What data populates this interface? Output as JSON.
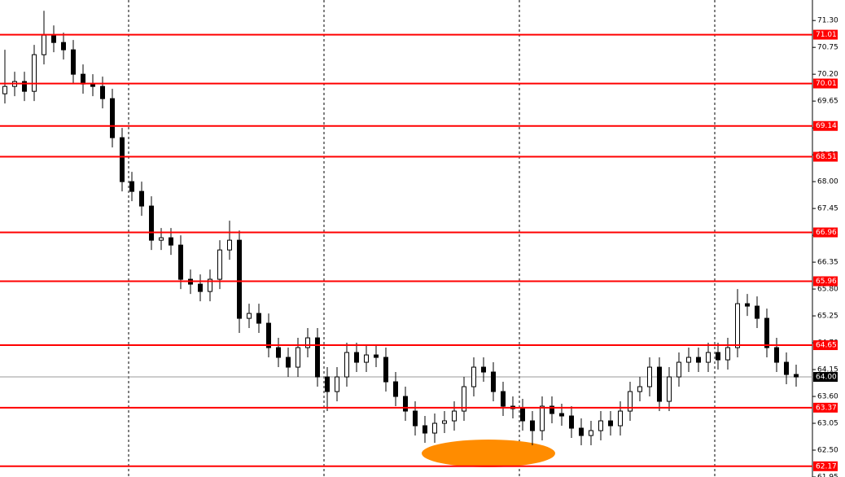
{
  "chart_data": {
    "type": "candlestick",
    "x": null,
    "open": [
      69.8,
      69.95,
      70.05,
      69.85,
      70.6,
      71.0,
      70.85,
      70.7,
      70.2,
      70.0,
      69.95,
      69.7,
      68.9,
      68.0,
      67.8,
      67.5,
      66.8,
      66.85,
      66.7,
      66.0,
      65.9,
      65.75,
      66.0,
      66.6,
      66.8,
      65.2,
      65.3,
      65.1,
      64.6,
      64.4,
      64.2,
      64.6,
      64.8,
      64.0,
      63.7,
      64.0,
      64.5,
      64.3,
      64.45,
      64.4,
      63.9,
      63.6,
      63.3,
      63.0,
      62.85,
      63.05,
      63.1,
      63.3,
      63.8,
      64.2,
      64.1,
      63.7,
      63.4,
      63.35,
      63.1,
      62.9,
      63.4,
      63.25,
      63.2,
      62.95,
      62.8,
      62.9,
      63.1,
      63.0,
      63.3,
      63.7,
      63.8,
      64.2,
      63.5,
      64.0,
      64.3,
      64.4,
      64.3,
      64.5,
      64.35,
      64.6,
      65.5,
      65.45,
      65.2,
      64.6,
      64.3,
      64.05
    ],
    "high": [
      70.7,
      70.25,
      70.25,
      70.8,
      71.5,
      71.2,
      71.05,
      70.9,
      70.4,
      70.2,
      70.15,
      69.9,
      69.1,
      68.2,
      68.0,
      67.7,
      67.05,
      67.05,
      66.9,
      66.2,
      66.1,
      66.2,
      66.8,
      67.2,
      67.0,
      65.5,
      65.5,
      65.3,
      64.8,
      64.6,
      64.8,
      65.0,
      65.0,
      64.2,
      64.2,
      64.7,
      64.7,
      64.65,
      64.65,
      64.6,
      64.1,
      63.8,
      63.5,
      63.2,
      63.25,
      63.3,
      63.5,
      64.0,
      64.4,
      64.4,
      64.3,
      63.9,
      63.6,
      63.55,
      63.3,
      63.6,
      63.6,
      63.45,
      63.4,
      63.15,
      63.1,
      63.3,
      63.3,
      63.5,
      63.9,
      64.0,
      64.4,
      64.4,
      64.2,
      64.5,
      64.6,
      64.6,
      64.7,
      64.7,
      64.8,
      65.8,
      65.7,
      65.65,
      65.4,
      64.8,
      64.5,
      64.25
    ],
    "low": [
      69.6,
      69.75,
      69.65,
      69.65,
      70.4,
      70.65,
      70.5,
      70.0,
      69.8,
      69.75,
      69.5,
      68.7,
      67.8,
      67.6,
      67.3,
      66.6,
      66.6,
      66.5,
      65.8,
      65.7,
      65.55,
      65.55,
      65.8,
      66.4,
      64.9,
      65.0,
      64.9,
      64.4,
      64.2,
      64.0,
      64.0,
      64.4,
      63.8,
      63.3,
      63.5,
      63.8,
      64.1,
      64.1,
      64.2,
      63.7,
      63.4,
      63.1,
      62.8,
      62.65,
      62.65,
      62.85,
      62.9,
      63.1,
      63.6,
      63.9,
      63.5,
      63.2,
      63.15,
      62.9,
      62.6,
      62.7,
      63.05,
      63.0,
      62.75,
      62.6,
      62.6,
      62.7,
      62.8,
      62.8,
      63.1,
      63.5,
      63.6,
      63.3,
      63.3,
      63.8,
      64.1,
      64.1,
      64.1,
      64.15,
      64.15,
      64.4,
      65.25,
      65.0,
      64.4,
      64.1,
      63.85,
      63.8
    ],
    "close": [
      69.95,
      70.05,
      69.85,
      70.6,
      71.0,
      70.85,
      70.7,
      70.2,
      70.0,
      69.95,
      69.7,
      68.9,
      68.0,
      67.8,
      67.5,
      66.8,
      66.85,
      66.7,
      66.0,
      65.9,
      65.75,
      66.0,
      66.6,
      66.8,
      65.2,
      65.3,
      65.1,
      64.6,
      64.4,
      64.2,
      64.6,
      64.8,
      64.0,
      63.7,
      64.0,
      64.5,
      64.3,
      64.45,
      64.4,
      63.9,
      63.6,
      63.3,
      63.0,
      62.85,
      63.05,
      63.1,
      63.3,
      63.8,
      64.2,
      64.1,
      63.7,
      63.4,
      63.35,
      63.1,
      62.9,
      63.4,
      63.25,
      63.2,
      62.95,
      62.8,
      62.9,
      63.1,
      63.0,
      63.3,
      63.7,
      63.8,
      64.2,
      63.5,
      64.0,
      64.3,
      64.4,
      64.3,
      64.5,
      64.35,
      64.6,
      65.5,
      65.45,
      65.2,
      64.6,
      64.3,
      64.05,
      64.0
    ],
    "levels": [
      71.01,
      70.01,
      69.14,
      68.51,
      66.96,
      65.96,
      64.65,
      63.37,
      62.17
    ],
    "level_color": "#ff0000",
    "current_price": {
      "value": 64,
      "label": "64.00"
    },
    "ylim": [
      61.95,
      71.72
    ],
    "yticks": [
      61.95,
      {
        "value": 62.5,
        "label": "62.50"
      },
      63.05,
      {
        "value": 63.6,
        "label": "63.60"
      },
      64.15,
      {
        "value": 64.7,
        "label": "64.70"
      },
      65.25,
      {
        "value": 65.8,
        "label": "65.80"
      },
      66.35,
      {
        "value": 66.9,
        "label": "66.90"
      },
      67.45,
      {
        "value": 68,
        "label": "68.00"
      },
      68.55,
      {
        "value": 69.1,
        "label": "69.10"
      },
      69.65,
      {
        "value": 70.2,
        "label": "70.20"
      },
      70.75,
      {
        "value": 71.3,
        "label": "71.30"
      }
    ]
  }
}
